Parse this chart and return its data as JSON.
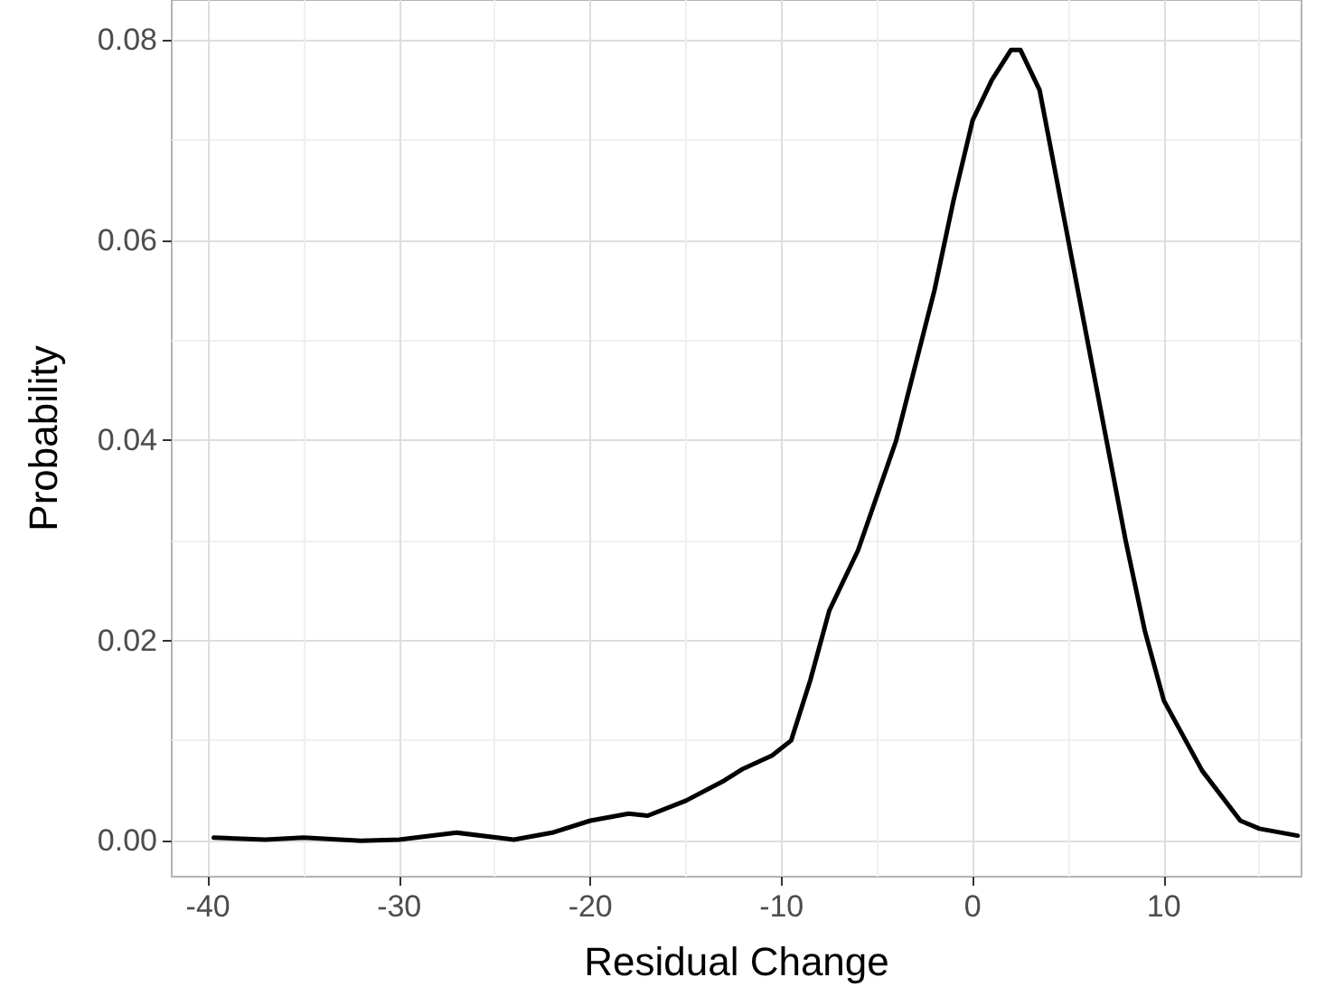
{
  "chart_data": {
    "type": "line",
    "xlabel": "Residual Change",
    "ylabel": "Probability",
    "x": [
      -39.7,
      -37,
      -35,
      -32,
      -30,
      -27,
      -24,
      -22,
      -20,
      -18,
      -17,
      -15,
      -13,
      -12,
      -10.5,
      -9.5,
      -8.5,
      -7.5,
      -6,
      -4,
      -2,
      -1,
      0,
      1,
      2,
      2.5,
      3.5,
      5,
      6,
      7,
      8,
      9,
      10,
      12,
      14,
      15,
      17
    ],
    "series": [
      {
        "color": "#000000",
        "values": [
          0.0003,
          0.0001,
          0.0003,
          0.0,
          0.0001,
          0.0008,
          0.0001,
          0.0008,
          0.002,
          0.0027,
          0.0025,
          0.004,
          0.006,
          0.0072,
          0.0085,
          0.01,
          0.016,
          0.023,
          0.029,
          0.04,
          0.055,
          0.064,
          0.072,
          0.076,
          0.079,
          0.079,
          0.075,
          0.06,
          0.05,
          0.04,
          0.03,
          0.021,
          0.014,
          0.007,
          0.002,
          0.0012,
          0.0005
        ]
      }
    ],
    "xlim": [
      -41.9,
      17.2
    ],
    "xticks": [
      -40,
      -30,
      -20,
      -10,
      0,
      10
    ],
    "ylim": [
      -0.0036,
      0.084
    ],
    "yticks": [
      {
        "value": 0,
        "label": "0.00"
      },
      {
        "value": 0.02,
        "label": "0.02"
      },
      {
        "value": 0.04,
        "label": "0.04"
      },
      {
        "value": 0.06,
        "label": "0.06"
      },
      {
        "value": 0.08,
        "label": "0.08"
      }
    ],
    "grid": true,
    "marker": "none",
    "line_style": "solid"
  }
}
